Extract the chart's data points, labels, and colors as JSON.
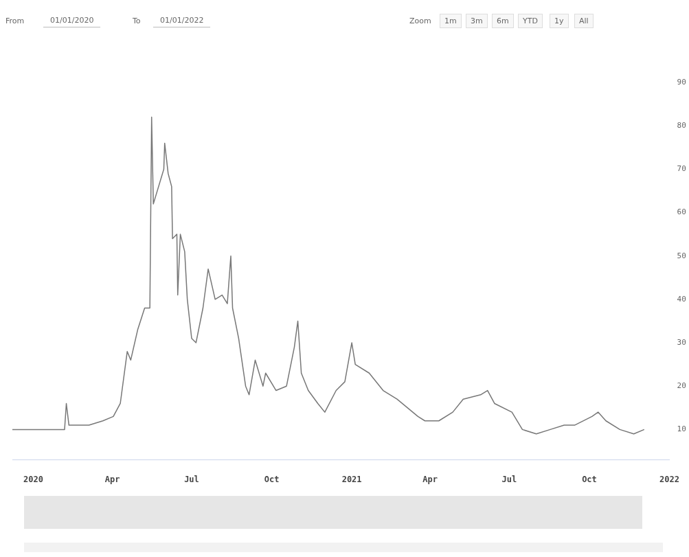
{
  "chart_data": {
    "type": "line",
    "annotations": [
      "From",
      "01/01/2020",
      "To",
      "01/01/2022",
      "Zoom",
      "1m",
      "3m",
      "6m",
      "YTD",
      "1y",
      "All"
    ],
    "x": [
      "2019-12-08",
      "2020-02-06",
      "2020-02-08",
      "2020-02-11",
      "2020-03-05",
      "2020-03-21",
      "2020-04-02",
      "2020-04-10",
      "2020-04-18",
      "2020-04-22",
      "2020-04-30",
      "2020-05-08",
      "2020-05-14",
      "2020-05-16",
      "2020-05-18",
      "2020-05-30",
      "2020-05-31",
      "2020-06-04",
      "2020-06-08",
      "2020-06-09",
      "2020-06-14",
      "2020-06-15",
      "2020-06-18",
      "2020-06-23",
      "2020-06-26",
      "2020-07-01",
      "2020-07-06",
      "2020-07-14",
      "2020-07-20",
      "2020-07-28",
      "2020-08-05",
      "2020-08-11",
      "2020-08-15",
      "2020-08-17",
      "2020-08-24",
      "2020-09-01",
      "2020-09-05",
      "2020-09-12",
      "2020-09-21",
      "2020-09-24",
      "2020-10-06",
      "2020-10-18",
      "2020-10-27",
      "2020-10-31",
      "2020-11-04",
      "2020-11-12",
      "2020-11-23",
      "2020-12-01",
      "2020-12-14",
      "2020-12-24",
      "2021-01-01",
      "2021-01-05",
      "2021-01-21",
      "2021-02-06",
      "2021-02-22",
      "2021-03-18",
      "2021-03-26",
      "2021-04-11",
      "2021-04-27",
      "2021-05-09",
      "2021-05-29",
      "2021-06-06",
      "2021-06-14",
      "2021-07-04",
      "2021-07-16",
      "2021-08-01",
      "2021-08-17",
      "2021-09-02",
      "2021-09-14",
      "2021-10-04",
      "2021-10-11",
      "2021-10-20",
      "2021-11-05",
      "2021-11-21",
      "2021-12-03"
    ],
    "series": [
      {
        "color": "#777777",
        "values": [
          10,
          10,
          16,
          11,
          11,
          12,
          13,
          16,
          28,
          26,
          33,
          38,
          38,
          82,
          62,
          70,
          76,
          69,
          66,
          54,
          55,
          41,
          55,
          51,
          40,
          31,
          30,
          38,
          47,
          40,
          41,
          39,
          50,
          38,
          31,
          20,
          18,
          26,
          20,
          23,
          19,
          20,
          29,
          35,
          23,
          19,
          16,
          14,
          19,
          21,
          30,
          25,
          23,
          19,
          17,
          13,
          12,
          12,
          14,
          17,
          18,
          19,
          16,
          14,
          10,
          9,
          10,
          11,
          11,
          13,
          14,
          12,
          10,
          9,
          10
        ]
      }
    ],
    "xlim": [
      "2019-12-08",
      "2022-01-01"
    ],
    "xticks": [
      {
        "value": "2020-01-01",
        "label": "2020"
      },
      {
        "value": "2020-04-01",
        "label": "Apr"
      },
      {
        "value": "2020-07-01",
        "label": "Jul"
      },
      {
        "value": "2020-10-01",
        "label": "Oct"
      },
      {
        "value": "2021-01-01",
        "label": "2021"
      },
      {
        "value": "2021-04-01",
        "label": "Apr"
      },
      {
        "value": "2021-07-01",
        "label": "Jul"
      },
      {
        "value": "2021-10-01",
        "label": "Oct"
      },
      {
        "value": "2022-01-01",
        "label": "2022"
      }
    ],
    "ylim": [
      3,
      90
    ],
    "yticks": [
      10,
      20,
      30,
      40,
      50,
      60,
      70,
      80,
      90
    ],
    "grid": false,
    "legend": false,
    "marker": "none",
    "line_style": "solid"
  }
}
